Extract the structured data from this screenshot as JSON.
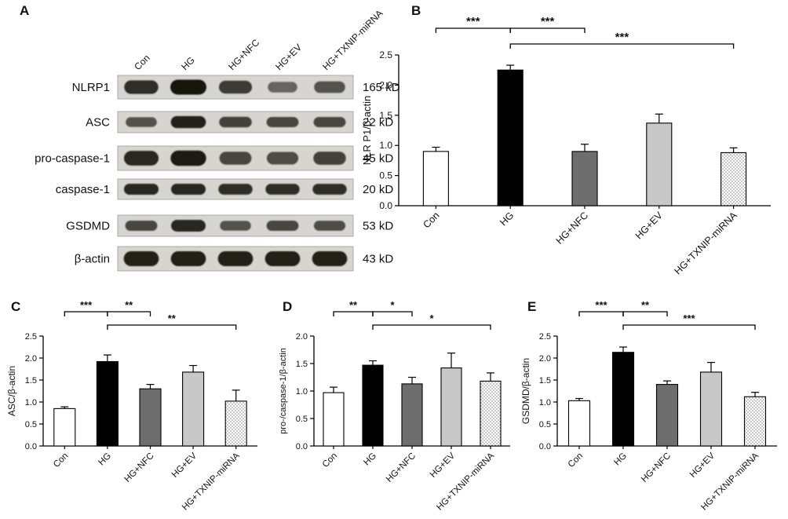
{
  "figure": {
    "panels": {
      "A": "A",
      "B": "B",
      "C": "C",
      "D": "D",
      "E": "E"
    }
  },
  "blot": {
    "panel": "A",
    "lanes": [
      "Con",
      "HG",
      "HG+NFC",
      "HG+EV",
      "HG+TXNIP-miRNA"
    ],
    "rows": [
      {
        "protein": "NLRP1",
        "kd": "165 kD",
        "intensities": [
          0.8,
          1.0,
          0.7,
          0.35,
          0.5
        ]
      },
      {
        "protein": "ASC",
        "kd": "22 kD",
        "intensities": [
          0.5,
          0.9,
          0.65,
          0.6,
          0.6
        ]
      },
      {
        "protein": "pro-caspase-1",
        "kd": "45 kD",
        "intensities": [
          0.85,
          0.95,
          0.6,
          0.55,
          0.65
        ]
      },
      {
        "protein": "caspase-1",
        "kd": "20 kD",
        "intensities": [
          0.85,
          0.85,
          0.8,
          0.8,
          0.8
        ]
      },
      {
        "protein": "GSDMD",
        "kd": "53 kD",
        "intensities": [
          0.6,
          0.85,
          0.5,
          0.6,
          0.55
        ]
      },
      {
        "protein": "β-actin",
        "kd": "43 kD",
        "intensities": [
          0.9,
          0.9,
          0.9,
          0.9,
          0.9
        ]
      }
    ]
  },
  "bar_style_colors": {
    "outline": "#ffffff",
    "solid": "#000000",
    "dark": "#6e6e6e",
    "light": "#c8c8c8",
    "stipple_dot": "#555555"
  },
  "chart_data": [
    {
      "panel": "B",
      "type": "bar",
      "categories": [
        "Con",
        "HG",
        "HG+NFC",
        "HG+EV",
        "HG+TXNIP-miRNA"
      ],
      "values": [
        0.9,
        2.25,
        0.9,
        1.37,
        0.88
      ],
      "errors": [
        0.07,
        0.08,
        0.12,
        0.15,
        0.08
      ],
      "styles": [
        "outline",
        "solid",
        "dark",
        "light",
        "stipple"
      ],
      "title": "",
      "xlabel": "",
      "ylabel": "NLR P1/β-actin",
      "ylim": [
        0,
        2.5
      ],
      "ytick_step": 0.5,
      "grid": false,
      "legend": "none",
      "significance": [
        {
          "from": 0,
          "to": 1,
          "label": "***",
          "row": 1
        },
        {
          "from": 1,
          "to": 2,
          "label": "***",
          "row": 1
        },
        {
          "from": 1,
          "to": 4,
          "label": "***",
          "row": 0
        }
      ]
    },
    {
      "panel": "C",
      "type": "bar",
      "categories": [
        "Con",
        "HG",
        "HG+NFC",
        "HG+EV",
        "HG+TXNIP-miRNA"
      ],
      "values": [
        0.85,
        1.92,
        1.3,
        1.68,
        1.02
      ],
      "errors": [
        0.04,
        0.15,
        0.1,
        0.15,
        0.25
      ],
      "styles": [
        "outline",
        "solid",
        "dark",
        "light",
        "stipple"
      ],
      "title": "",
      "xlabel": "",
      "ylabel": "ASC/β-actin",
      "ylim": [
        0,
        2.5
      ],
      "ytick_step": 0.5,
      "grid": false,
      "legend": "none",
      "significance": [
        {
          "from": 0,
          "to": 1,
          "label": "***",
          "row": 1
        },
        {
          "from": 1,
          "to": 2,
          "label": "**",
          "row": 1
        },
        {
          "from": 1,
          "to": 4,
          "label": "**",
          "row": 0
        }
      ]
    },
    {
      "panel": "D",
      "type": "bar",
      "categories": [
        "Con",
        "HG",
        "HG+NFC",
        "HG+EV",
        "HG+TXNIP-miRNA"
      ],
      "values": [
        0.97,
        1.47,
        1.13,
        1.42,
        1.18
      ],
      "errors": [
        0.1,
        0.08,
        0.12,
        0.27,
        0.15
      ],
      "styles": [
        "outline",
        "solid",
        "dark",
        "light",
        "stipple"
      ],
      "title": "",
      "xlabel": "",
      "ylabel": "pro-/caspase-1/β-actin",
      "ylim": [
        0,
        2.0
      ],
      "ytick_step": 0.5,
      "grid": false,
      "legend": "none",
      "significance": [
        {
          "from": 0,
          "to": 1,
          "label": "**",
          "row": 1
        },
        {
          "from": 1,
          "to": 2,
          "label": "*",
          "row": 1
        },
        {
          "from": 1,
          "to": 4,
          "label": "*",
          "row": 0
        }
      ]
    },
    {
      "panel": "E",
      "type": "bar",
      "categories": [
        "Con",
        "HG",
        "HG+NFC",
        "HG+EV",
        "HG+TXNIP-miRNA"
      ],
      "values": [
        1.03,
        2.13,
        1.4,
        1.68,
        1.12
      ],
      "errors": [
        0.05,
        0.12,
        0.08,
        0.22,
        0.1
      ],
      "styles": [
        "outline",
        "solid",
        "dark",
        "light",
        "stipple"
      ],
      "title": "",
      "xlabel": "",
      "ylabel": "GSDMD/β-actin",
      "ylim": [
        0,
        2.5
      ],
      "ytick_step": 0.5,
      "grid": false,
      "legend": "none",
      "significance": [
        {
          "from": 0,
          "to": 1,
          "label": "***",
          "row": 1
        },
        {
          "from": 1,
          "to": 2,
          "label": "**",
          "row": 1
        },
        {
          "from": 1,
          "to": 4,
          "label": "***",
          "row": 0
        }
      ]
    }
  ]
}
